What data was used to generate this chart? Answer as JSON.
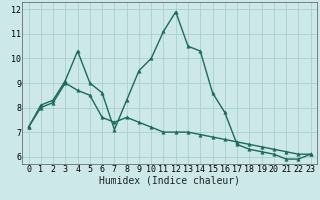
{
  "xlabel": "Humidex (Indice chaleur)",
  "background_color": "#cce8e8",
  "line_color": "#1a6b5a",
  "grid_color": "#aacece",
  "xlim": [
    -0.5,
    23.5
  ],
  "ylim": [
    5.7,
    12.3
  ],
  "yticks": [
    6,
    7,
    8,
    9,
    10,
    11,
    12
  ],
  "xticks": [
    0,
    1,
    2,
    3,
    4,
    5,
    6,
    7,
    8,
    9,
    10,
    11,
    12,
    13,
    14,
    15,
    16,
    17,
    18,
    19,
    20,
    21,
    22,
    23
  ],
  "series1_x": [
    0,
    1,
    2,
    3,
    4,
    5,
    6,
    7,
    8,
    9,
    10,
    11,
    12,
    13,
    14,
    15,
    16,
    17,
    18,
    19,
    20,
    21,
    22,
    23
  ],
  "series1_y": [
    7.2,
    8.1,
    8.3,
    9.1,
    10.3,
    9.0,
    8.6,
    7.1,
    8.3,
    9.5,
    10.0,
    11.1,
    11.9,
    10.5,
    10.3,
    8.6,
    7.8,
    6.5,
    6.3,
    6.2,
    6.1,
    5.9,
    5.9,
    6.1
  ],
  "series2_x": [
    0,
    1,
    2,
    3,
    4,
    5,
    6,
    7,
    8,
    9,
    10,
    11,
    12,
    13,
    14,
    15,
    16,
    17,
    18,
    19,
    20,
    21,
    22,
    23
  ],
  "series2_y": [
    7.2,
    8.0,
    8.2,
    9.0,
    8.7,
    8.5,
    7.6,
    7.4,
    7.6,
    7.4,
    7.2,
    7.0,
    7.0,
    7.0,
    6.9,
    6.8,
    6.7,
    6.6,
    6.5,
    6.4,
    6.3,
    6.2,
    6.1,
    6.1
  ],
  "markersize": 2.5,
  "linewidth": 1.0,
  "fontsize_ticks": 6,
  "fontsize_label": 7
}
